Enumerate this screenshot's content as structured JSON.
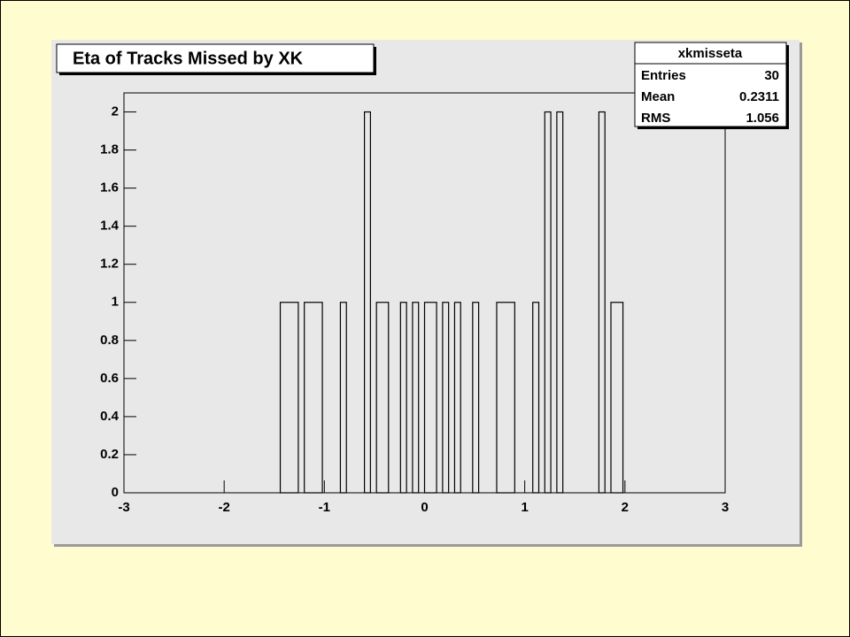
{
  "chart_data": {
    "type": "histogram",
    "title": "Eta of Tracks Missed by XK",
    "bins": [
      -3,
      -1.44,
      -1.26,
      -1.2,
      -1.02,
      -0.84,
      -0.78,
      -0.6,
      -0.54,
      -0.48,
      -0.36,
      -0.24,
      -0.18,
      -0.12,
      -0.06,
      0,
      0.12,
      0.18,
      0.24,
      0.3,
      0.36,
      0.48,
      0.54,
      0.72,
      0.9,
      1.08,
      1.14,
      1.2,
      1.26,
      1.32,
      1.38,
      1.74,
      1.8,
      1.86,
      1.98,
      3
    ],
    "values": [
      0,
      1,
      0,
      1,
      0,
      1,
      0,
      2,
      0,
      1,
      0,
      1,
      0,
      1,
      0,
      1,
      0,
      1,
      0,
      1,
      0,
      1,
      0,
      1,
      0,
      1,
      0,
      2,
      0,
      2,
      0,
      2,
      0,
      1,
      0
    ],
    "color": "#000000",
    "xlim": [
      -3,
      3
    ],
    "xticks": [
      -3,
      -2,
      -1,
      0,
      1,
      2,
      3
    ],
    "ylim": [
      0,
      2.1
    ],
    "yticks": [
      0,
      0.2,
      0.4,
      0.6,
      0.8,
      1,
      1.2,
      1.4,
      1.6,
      1.8,
      2
    ],
    "stats": {
      "title": "xkmisseta",
      "rows": [
        {
          "label": "Entries",
          "value": 30
        },
        {
          "label": "Mean",
          "value": 0.2311
        },
        {
          "label": "RMS",
          "value": 1.056
        }
      ]
    }
  }
}
